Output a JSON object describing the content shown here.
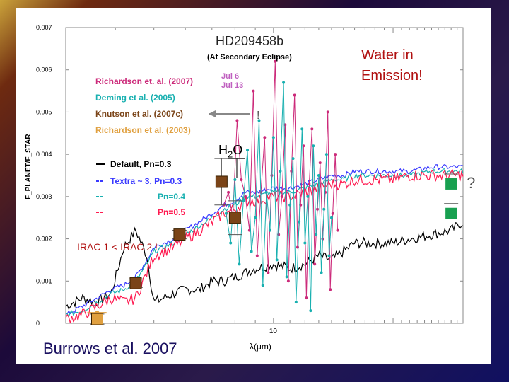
{
  "chart_data": {
    "type": "line",
    "title": "HD209458b",
    "subtitle": "(At Secondary Eclipse)",
    "xlabel": "λ(μm)",
    "ylabel": "F_PLANET/F_STAR",
    "xscale": "log",
    "xlim": [
      3,
      30
    ],
    "ylim": [
      0,
      0.007
    ],
    "x_ticks": [
      {
        "value": 10,
        "label": "10"
      }
    ],
    "y_ticks": [
      {
        "value": 0,
        "label": "0"
      },
      {
        "value": 0.001,
        "label": "0.001"
      },
      {
        "value": 0.002,
        "label": "0.002"
      },
      {
        "value": 0.003,
        "label": "0.003"
      },
      {
        "value": 0.004,
        "label": "0.004"
      },
      {
        "value": 0.005,
        "label": "0.005"
      },
      {
        "value": 0.006,
        "label": "0.006"
      },
      {
        "value": 0.007,
        "label": "0.007"
      }
    ],
    "legend_placement": "upper-left",
    "observation_legend": [
      {
        "label": "Richardson et. al. (2007)",
        "note1": "Jul 6",
        "note2": "Jul 13",
        "color": "#cc2a7a",
        "note_color": "#c060c0"
      },
      {
        "label": "Deming et al. (2005)",
        "color": "#18b0b0"
      },
      {
        "label": "Knutson et al. (2007c)",
        "color": "#7a4418"
      },
      {
        "label": "Richardson et al. (2003)",
        "color": "#e0a040"
      }
    ],
    "knutson_marker": "!",
    "model_legend": [
      {
        "label": "Default, Pn=0.3",
        "color": "#000000"
      },
      {
        "label": "Textra ~ 3, Pn=0.3",
        "color": "#3a3aff"
      },
      {
        "label": "Pn=0.4",
        "color": "#18b0b0"
      },
      {
        "label": "Pn=0.5",
        "color": "#ff1a50"
      }
    ],
    "series": [
      {
        "name": "Default, Pn=0.3",
        "color": "#000000",
        "x": [
          3.0,
          3.3,
          3.6,
          3.9,
          4.2,
          4.5,
          4.8,
          5.0,
          5.3,
          5.6,
          6.0,
          6.5,
          7.0,
          7.5,
          8.0,
          8.5,
          9.0,
          10.0,
          11.0,
          12.0,
          13.0,
          14.0,
          15.0,
          16.0,
          18.0,
          20.0,
          22.0,
          25.0,
          28.0,
          30.0
        ],
        "y": [
          0.0004,
          0.0006,
          0.0005,
          0.0007,
          0.0018,
          0.0022,
          0.0016,
          0.0005,
          0.0006,
          0.0007,
          0.0008,
          0.0008,
          0.001,
          0.001,
          0.0011,
          0.0012,
          0.0013,
          0.0014,
          0.0013,
          0.0014,
          0.0016,
          0.0015,
          0.0017,
          0.0019,
          0.0019,
          0.0019,
          0.002,
          0.0021,
          0.0022,
          0.0024
        ]
      },
      {
        "name": "Textra ~ 3, Pn=0.3",
        "color": "#3a3aff",
        "x": [
          3.0,
          3.3,
          3.6,
          3.9,
          4.2,
          4.5,
          4.8,
          5.0,
          5.3,
          5.6,
          6.0,
          6.5,
          7.0,
          7.5,
          8.0,
          8.5,
          9.0,
          10.0,
          11.0,
          12.0,
          13.0,
          14.0,
          15.0,
          16.0,
          18.0,
          20.0,
          22.0,
          25.0,
          28.0,
          30.0
        ],
        "y": [
          0.0002,
          0.0004,
          0.0006,
          0.0008,
          0.0009,
          0.0011,
          0.0015,
          0.0018,
          0.0019,
          0.002,
          0.0022,
          0.0024,
          0.0026,
          0.0028,
          0.0029,
          0.0031,
          0.0031,
          0.0032,
          0.0032,
          0.0033,
          0.0034,
          0.0035,
          0.0035,
          0.0036,
          0.0036,
          0.0036,
          0.0036,
          0.0037,
          0.0037,
          0.0037
        ]
      },
      {
        "name": "Pn=0.4",
        "color": "#18b0b0",
        "x": [
          3.0,
          3.3,
          3.6,
          3.9,
          4.2,
          4.5,
          4.8,
          5.0,
          5.3,
          5.6,
          6.0,
          6.5,
          7.0,
          7.5,
          8.0,
          8.5,
          9.0,
          10.0,
          11.0,
          12.0,
          13.0,
          14.0,
          15.0,
          16.0,
          18.0,
          20.0,
          22.0,
          25.0,
          28.0,
          30.0
        ],
        "y": [
          0.0002,
          0.0003,
          0.0005,
          0.0007,
          0.0008,
          0.001,
          0.0014,
          0.0017,
          0.0018,
          0.0019,
          0.0021,
          0.0023,
          0.0025,
          0.0027,
          0.0028,
          0.003,
          0.003,
          0.0031,
          0.0031,
          0.0032,
          0.0033,
          0.0034,
          0.0034,
          0.0035,
          0.0035,
          0.0035,
          0.0035,
          0.0036,
          0.0036,
          0.0036
        ]
      },
      {
        "name": "Pn=0.5",
        "color": "#ff1a50",
        "x": [
          3.0,
          3.3,
          3.6,
          3.9,
          4.2,
          4.5,
          4.8,
          5.0,
          5.3,
          5.6,
          6.0,
          6.5,
          7.0,
          7.5,
          8.0,
          8.5,
          9.0,
          10.0,
          11.0,
          12.0,
          13.0,
          14.0,
          15.0,
          16.0,
          18.0,
          20.0,
          22.0,
          25.0,
          28.0,
          30.0
        ],
        "y": [
          0.0001,
          0.0002,
          0.0004,
          0.0006,
          0.0005,
          0.0006,
          0.0012,
          0.0016,
          0.0017,
          0.0018,
          0.002,
          0.0022,
          0.0024,
          0.0026,
          0.0027,
          0.0029,
          0.0029,
          0.003,
          0.003,
          0.0031,
          0.0032,
          0.0033,
          0.0033,
          0.0034,
          0.0034,
          0.0034,
          0.0035,
          0.0035,
          0.0035,
          0.0035
        ]
      }
    ],
    "observations": [
      {
        "name": "Richardson et. al. (2007) Jul 6",
        "color": "#cc2a7a",
        "x": [
          7.5,
          7.7,
          7.9,
          8.1,
          8.3,
          8.5,
          8.7,
          8.9,
          9.1,
          9.3,
          9.5,
          9.7,
          9.9,
          10.1,
          10.3,
          10.5,
          10.7,
          10.9,
          11.1,
          11.3,
          11.5,
          11.7,
          11.9,
          12.1,
          12.3,
          12.5,
          12.7,
          12.9,
          13.1,
          13.3,
          13.5,
          13.7,
          13.9,
          14.1,
          14.3,
          14.5
        ],
        "y": [
          0.0028,
          0.0031,
          0.0025,
          0.0048,
          0.0034,
          0.003,
          0.0022,
          0.0055,
          0.0016,
          0.0031,
          0.0044,
          0.0012,
          0.0035,
          0.0062,
          0.0021,
          0.003,
          0.0047,
          0.001,
          0.0036,
          0.0054,
          0.0018,
          0.0028,
          0.0042,
          0.0006,
          0.0033,
          0.0046,
          0.0014,
          0.0027,
          0.0038,
          0.002,
          0.0031,
          0.005,
          0.0008,
          0.0026,
          0.004,
          0.0022
        ]
      },
      {
        "name": "Deming et al. (2005)",
        "color": "#18b0b0",
        "x": [
          7.6,
          7.8,
          8.0,
          8.2,
          8.4,
          8.6,
          8.8,
          9.0,
          9.2,
          9.4,
          9.6,
          9.8,
          10.0,
          10.2,
          10.4,
          10.6,
          10.8,
          11.0,
          11.2,
          11.4,
          11.6,
          11.8,
          12.0,
          12.2,
          12.4,
          12.6,
          12.8,
          13.0,
          13.2,
          13.4,
          13.6,
          13.8,
          14.0
        ],
        "y": [
          0.0026,
          0.0019,
          0.0034,
          0.0014,
          0.0029,
          0.0041,
          0.0017,
          0.0025,
          0.0048,
          0.0009,
          0.0031,
          0.0022,
          0.0044,
          0.0015,
          0.0036,
          0.0057,
          0.0011,
          0.0028,
          0.0039,
          0.0005,
          0.0024,
          0.0046,
          0.0019,
          0.003,
          0.0003,
          0.0042,
          0.0021,
          0.0035,
          0.0012,
          0.0027,
          0.004,
          0.0016,
          0.0025
        ]
      },
      {
        "name": "Richardson et al. (2003)",
        "color": "#e0a040",
        "x": [
          3.6
        ],
        "y": [
          0.00025
        ],
        "xerr": 0.2
      }
    ],
    "photometry": [
      {
        "name": "IRAC 3.6",
        "x": 3.6,
        "y": 0.0001,
        "err": 0.00012,
        "color": "#e0a040"
      },
      {
        "name": "IRAC 4.5",
        "x": 4.5,
        "y": 0.00095,
        "err": 0.0001,
        "color": "#7a4418"
      },
      {
        "name": "IRAC 5.8",
        "x": 5.8,
        "y": 0.0021,
        "err": 0.0001,
        "color": "#7a4418"
      },
      {
        "name": "IRAC 8.0",
        "x": 8.0,
        "y": 0.0025,
        "err": 0.0004,
        "color": "#7a4418",
        "x_pos_override": null
      },
      {
        "name": "IRAC 8 (2)",
        "x": 7.4,
        "y": 0.00335,
        "err": 0.00055,
        "color": "#7a4418"
      },
      {
        "name": "MIPS 24",
        "x": 24,
        "y": 0.0026,
        "err": 0.0002,
        "color": "#18a050",
        "marker": "square-green"
      }
    ],
    "green_points": [
      {
        "x": 28.0,
        "y": 0.0033,
        "color": "#18a050"
      },
      {
        "x": 28.0,
        "y": 0.0026,
        "color": "#18a050"
      }
    ],
    "question_mark": "?"
  },
  "annotations": {
    "water": "Water in\nEmission!",
    "water_line1": "Water in",
    "water_line2": "Emission!",
    "irac": "IRAC 1 < IRAC 2 !",
    "h2o": "H2O",
    "h2o_base": "H",
    "h2o_sub": "2",
    "h2o_rest": "O",
    "credit": "Burrows et al. 2007"
  }
}
